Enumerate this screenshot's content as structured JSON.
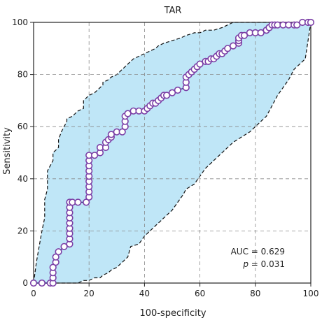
{
  "chart_data": {
    "type": "line",
    "title": "TAR",
    "xlabel": "100-specificity",
    "ylabel": "Sensitivity",
    "xlim": [
      0,
      100
    ],
    "ylim": [
      0,
      100
    ],
    "xticks": [
      0,
      20,
      40,
      60,
      80,
      100
    ],
    "yticks": [
      0,
      20,
      40,
      60,
      80,
      100
    ],
    "grid": true,
    "annotations": {
      "auc": "AUC = 0.629",
      "p_label": "p",
      "p_value": " = 0.031"
    },
    "colors": {
      "band": "#bfe6f7",
      "line": "#2f2a7a",
      "marker_edge": "#7b3fa6",
      "grid": "#888888"
    },
    "series": [
      {
        "role": "roc_curve",
        "x": [
          0,
          3,
          6,
          7,
          7,
          7,
          7,
          8,
          8,
          9,
          11,
          13,
          13,
          13,
          13,
          13,
          13,
          13,
          13,
          13,
          14,
          16,
          19,
          20,
          20,
          20,
          20,
          20,
          20,
          20,
          20,
          20,
          22,
          24,
          24,
          26,
          26,
          27,
          28,
          28,
          30,
          32,
          33,
          33,
          33,
          34,
          36,
          38,
          40,
          41,
          42,
          43,
          44,
          45,
          46,
          47,
          48,
          50,
          52,
          55,
          55,
          55,
          56,
          57,
          58,
          59,
          60,
          62,
          63,
          64,
          65,
          66,
          67,
          68,
          69,
          70,
          72,
          74,
          74,
          74,
          75,
          76,
          78,
          80,
          82,
          84,
          84,
          85,
          85,
          86,
          87,
          88,
          90,
          92,
          94,
          95,
          97,
          99,
          100
        ],
        "y": [
          0,
          0,
          0,
          0,
          2,
          4,
          6,
          8,
          10,
          12,
          14,
          15,
          17,
          19,
          21,
          23,
          25,
          27,
          29,
          31,
          31,
          31,
          31,
          33,
          35,
          37,
          39,
          41,
          43,
          45,
          47,
          49,
          49,
          50,
          52,
          52,
          54,
          55,
          56,
          57,
          58,
          58,
          60,
          62,
          64,
          65,
          66,
          66,
          66,
          67,
          68,
          69,
          69,
          70,
          71,
          72,
          72,
          73,
          74,
          75,
          77,
          79,
          80,
          81,
          82,
          83,
          84,
          85,
          85,
          86,
          86,
          87,
          88,
          88,
          89,
          90,
          91,
          92,
          93,
          94,
          95,
          95,
          96,
          96,
          96,
          97,
          97,
          98,
          98,
          99,
          99,
          99,
          99,
          99,
          99,
          99,
          100,
          100,
          100
        ]
      },
      {
        "role": "ci_upper",
        "x": [
          0,
          1,
          2,
          3,
          4,
          4,
          5,
          5,
          7,
          7,
          8,
          9,
          9,
          10,
          11,
          12,
          12,
          14,
          15,
          16,
          18,
          18,
          20,
          22,
          23,
          25,
          25,
          27,
          28,
          30,
          31,
          32,
          33,
          34,
          35,
          36,
          38,
          40,
          42,
          44,
          45,
          47,
          50,
          53,
          55,
          58,
          60,
          62,
          65,
          68,
          70,
          72,
          73,
          75,
          78,
          80,
          82,
          84,
          86,
          88,
          90,
          92,
          94,
          96,
          98,
          100
        ],
        "y": [
          0,
          8,
          14,
          20,
          25,
          32,
          36,
          43,
          47,
          50,
          51,
          52,
          55,
          58,
          60,
          62,
          63,
          64,
          65,
          66,
          67,
          70,
          72,
          73,
          74,
          76,
          77,
          78,
          79,
          80,
          81,
          82,
          83,
          84,
          85,
          86,
          87,
          88,
          89,
          90,
          91,
          92,
          93,
          94,
          95,
          96,
          96,
          97,
          97,
          98,
          99,
          100,
          100,
          100,
          100,
          100,
          100,
          100,
          100,
          100,
          100,
          100,
          100,
          100,
          100,
          100
        ]
      },
      {
        "role": "ci_lower",
        "x": [
          0,
          5,
          8,
          10,
          12,
          14,
          16,
          18,
          20,
          22,
          24,
          25,
          27,
          28,
          30,
          32,
          34,
          35,
          38,
          40,
          42,
          44,
          46,
          48,
          50,
          52,
          54,
          55,
          58,
          60,
          62,
          65,
          68,
          70,
          72,
          75,
          78,
          80,
          82,
          84,
          86,
          88,
          90,
          92,
          94,
          96,
          98,
          100
        ],
        "y": [
          0,
          0,
          0,
          0,
          0,
          0,
          0,
          1,
          1,
          2,
          2,
          3,
          4,
          5,
          6,
          8,
          10,
          14,
          15,
          18,
          20,
          22,
          24,
          26,
          28,
          31,
          34,
          36,
          38,
          41,
          44,
          47,
          50,
          52,
          54,
          56,
          58,
          60,
          62,
          64,
          68,
          72,
          75,
          78,
          82,
          84,
          86,
          100
        ]
      }
    ]
  }
}
